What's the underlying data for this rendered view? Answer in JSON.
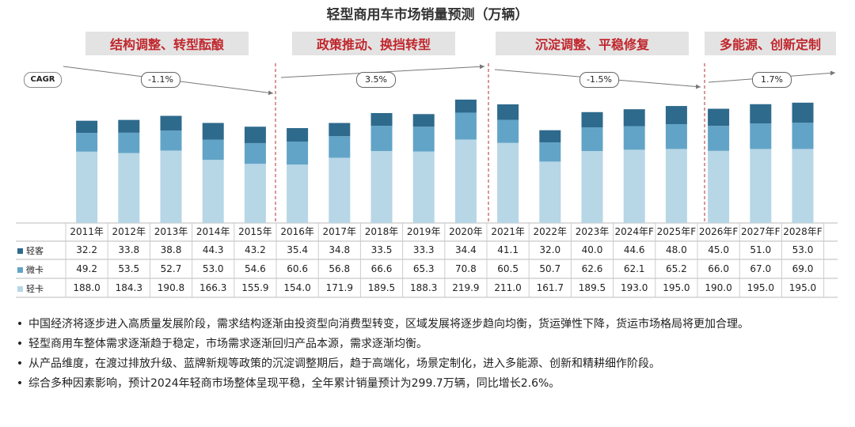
{
  "title": "轻型商用车市场销量预测（万辆）",
  "phases": [
    {
      "label": "结构调整、转型酝酿",
      "cagr": "-1.1%"
    },
    {
      "label": "政策推动、换挡转型",
      "cagr": "3.5%"
    },
    {
      "label": "沉淀调整、平稳修复",
      "cagr": "-1.5%"
    },
    {
      "label": "多能源、创新定制",
      "cagr": "1.7%"
    }
  ],
  "cagr_label": "CAGR",
  "chart_data": {
    "type": "bar",
    "stacked": true,
    "categories": [
      "2011年",
      "2012年",
      "2013年",
      "2014年",
      "2015年",
      "2016年",
      "2017年",
      "2018年",
      "2019年",
      "2020年",
      "2021年",
      "2022年",
      "2023年",
      "2024年F",
      "2025年F",
      "2026年F",
      "2027年F",
      "2028年F"
    ],
    "series": [
      {
        "name": "轻卡",
        "color": "#b7d6e6",
        "values": [
          188.0,
          184.3,
          190.8,
          166.3,
          155.9,
          154.0,
          171.9,
          189.5,
          188.3,
          219.9,
          211.0,
          161.7,
          189.5,
          193.0,
          195.0,
          190.0,
          195.0,
          195.0
        ]
      },
      {
        "name": "微卡",
        "color": "#62a4c7",
        "values": [
          49.2,
          53.5,
          52.7,
          53.0,
          54.6,
          60.6,
          56.8,
          66.6,
          65.3,
          70.8,
          60.5,
          50.7,
          62.6,
          62.1,
          65.2,
          66.0,
          67.0,
          69.0
        ]
      },
      {
        "name": "轻客",
        "color": "#2e6a8c",
        "values": [
          32.2,
          33.8,
          38.8,
          44.3,
          43.2,
          35.4,
          34.8,
          33.5,
          33.3,
          34.4,
          41.1,
          32.0,
          40.0,
          44.6,
          48.0,
          45.0,
          51.0,
          53.0
        ]
      }
    ],
    "table_labels": [
      "32.2",
      "33.8",
      "38.8",
      "44.3",
      "43.2",
      "35.4",
      "34.8",
      "33.5",
      "33.3",
      "34.4",
      "41.1",
      "32.0",
      "40.0",
      "44.6",
      "48.0",
      "45.0",
      "51.0",
      "53.0"
    ],
    "table_mid": [
      "49.2",
      "53.5",
      "52.7",
      "53.0",
      "54.6",
      "60.6",
      "56.8",
      "66.6",
      "65.3",
      "70.8",
      "60.5",
      "50.7",
      "62.6",
      "62.1",
      "65.2",
      "66.0",
      "67.0",
      "69.0"
    ],
    "table_bottom": [
      "188.0",
      "184.3",
      "190.8",
      "166.3",
      "155.9",
      "154.0",
      "171.9",
      "189.5",
      "188.3",
      "219.9",
      "211.0",
      "161.7",
      "189.5",
      "193.0",
      "195.0",
      "190.0",
      "195.0",
      "195.0"
    ]
  },
  "bullets": [
    "中国经济将逐步进入高质量发展阶段，需求结构逐渐由投资型向消费型转变，区域发展将逐步趋向均衡，货运弹性下降，货运市场格局将更加合理。",
    "轻型商用车整体需求逐渐趋于稳定，市场需求逐渐回归产品本源，需求逐渐均衡。",
    "从产品维度，在渡过排放升级、蓝牌新规等政策的沉淀调整期后，趋于高端化，场景定制化，进入多能源、创新和精耕细作阶段。",
    "综合多种因素影响，预计2024年轻商市场整体呈现平稳，全年累计销量预计为299.7万辆，同比增长2.6%。"
  ]
}
